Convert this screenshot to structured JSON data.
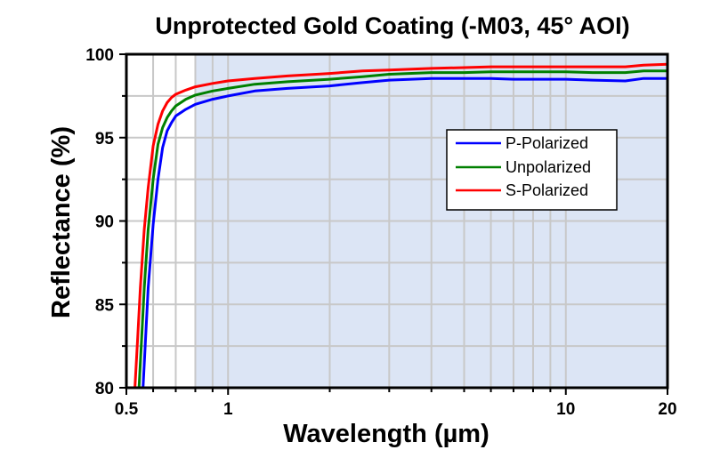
{
  "chart_data": {
    "type": "line",
    "title": "Unprotected Gold Coating (-M03, 45° AOI)",
    "xlabel": "Wavelength (µm)",
    "ylabel": "Reflectance (%)",
    "xscale": "log",
    "xlim": [
      0.5,
      20
    ],
    "ylim": [
      80,
      100
    ],
    "xticks": [
      0.5,
      1,
      10,
      20
    ],
    "xtick_labels": [
      "0.5",
      "1",
      "10",
      "20"
    ],
    "xminor_ticks": [
      0.6,
      0.7,
      0.8,
      0.9,
      2,
      3,
      4,
      5,
      6,
      7,
      8,
      9
    ],
    "yticks": [
      80,
      85,
      90,
      95,
      100
    ],
    "ytick_labels": [
      "80",
      "85",
      "90",
      "95",
      "100"
    ],
    "yminor_ticks": [
      82.5,
      87.5,
      92.5,
      97.5
    ],
    "grid": true,
    "shaded_region": {
      "x_from": 0.8,
      "x_to": 20,
      "color": "#dce5f5"
    },
    "legend": {
      "placement": "center-right",
      "entries": [
        "P-Polarized",
        "Unpolarized",
        "S-Polarized"
      ]
    },
    "series": [
      {
        "name": "P-Polarized",
        "color": "#0000ff",
        "x": [
          0.56,
          0.57,
          0.58,
          0.6,
          0.62,
          0.64,
          0.66,
          0.68,
          0.7,
          0.75,
          0.8,
          0.9,
          1.0,
          1.2,
          1.5,
          2.0,
          2.5,
          3.0,
          4.0,
          5.0,
          6.0,
          7.0,
          8.0,
          10.0,
          12.0,
          15.0,
          17.0,
          20.0
        ],
        "y": [
          80.0,
          83.0,
          86.0,
          89.8,
          92.5,
          94.4,
          95.4,
          95.9,
          96.3,
          96.7,
          97.0,
          97.3,
          97.5,
          97.8,
          97.95,
          98.1,
          98.3,
          98.45,
          98.55,
          98.55,
          98.55,
          98.5,
          98.5,
          98.5,
          98.45,
          98.4,
          98.55,
          98.55
        ]
      },
      {
        "name": "Unpolarized",
        "color": "#008000",
        "x": [
          0.545,
          0.555,
          0.565,
          0.58,
          0.6,
          0.62,
          0.64,
          0.66,
          0.68,
          0.7,
          0.75,
          0.8,
          0.9,
          1.0,
          1.2,
          1.5,
          2.0,
          2.5,
          3.0,
          4.0,
          5.0,
          6.0,
          7.0,
          8.0,
          10.0,
          12.0,
          15.0,
          17.0,
          20.0
        ],
        "y": [
          80.0,
          83.0,
          86.0,
          89.5,
          92.5,
          94.6,
          95.6,
          96.2,
          96.6,
          96.9,
          97.3,
          97.55,
          97.8,
          97.95,
          98.2,
          98.35,
          98.5,
          98.65,
          98.8,
          98.9,
          98.9,
          98.95,
          98.95,
          98.95,
          98.95,
          98.9,
          98.9,
          99.0,
          99.0
        ]
      },
      {
        "name": "S-Polarized",
        "color": "#ff0000",
        "x": [
          0.53,
          0.54,
          0.55,
          0.565,
          0.58,
          0.6,
          0.62,
          0.64,
          0.66,
          0.68,
          0.7,
          0.75,
          0.8,
          0.9,
          1.0,
          1.2,
          1.5,
          2.0,
          2.5,
          3.0,
          4.0,
          5.0,
          6.0,
          7.0,
          8.0,
          10.0,
          12.0,
          15.0,
          17.0,
          20.0
        ],
        "y": [
          80.0,
          83.0,
          86.0,
          89.5,
          92.0,
          94.5,
          95.8,
          96.6,
          97.1,
          97.4,
          97.6,
          97.85,
          98.05,
          98.25,
          98.4,
          98.55,
          98.7,
          98.85,
          99.0,
          99.05,
          99.15,
          99.2,
          99.25,
          99.25,
          99.25,
          99.25,
          99.25,
          99.25,
          99.35,
          99.4
        ]
      }
    ]
  }
}
